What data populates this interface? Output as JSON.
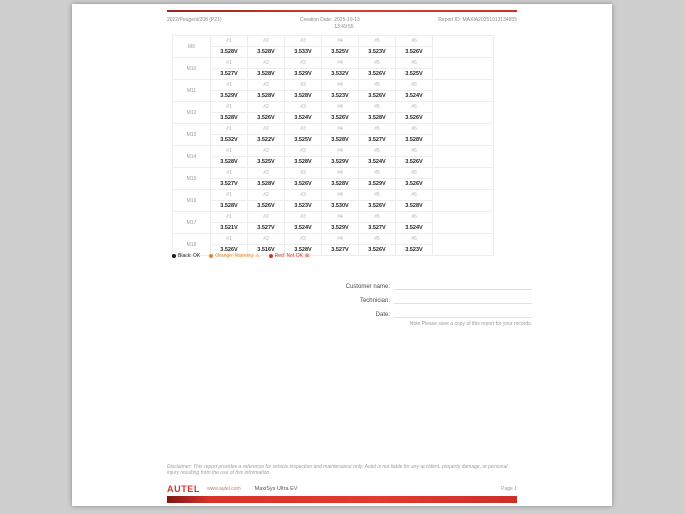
{
  "header": {
    "vehicle": "2022/Peugeot/208 (P21)",
    "creation_date_label": "Creation Date:",
    "creation_date": "2025-10-13",
    "creation_time": "13:49:55",
    "report_id_label": "Report ID:",
    "report_id": "MAXIA20251013134955"
  },
  "table": {
    "cell_headers": [
      "#1",
      "#2",
      "#3",
      "#4",
      "#5",
      "#6"
    ],
    "modules": [
      {
        "name": "M9",
        "values": [
          "3.528V",
          "3.528V",
          "3.533V",
          "3.525V",
          "3.523V",
          "3.526V"
        ]
      },
      {
        "name": "M10",
        "values": [
          "3.527V",
          "3.528V",
          "3.529V",
          "3.532V",
          "3.526V",
          "3.525V"
        ]
      },
      {
        "name": "M11",
        "values": [
          "3.529V",
          "3.528V",
          "3.528V",
          "3.523V",
          "3.526V",
          "3.524V"
        ]
      },
      {
        "name": "M12",
        "values": [
          "3.528V",
          "3.526V",
          "3.524V",
          "3.526V",
          "3.528V",
          "3.526V"
        ]
      },
      {
        "name": "M13",
        "values": [
          "3.532V",
          "3.522V",
          "3.525V",
          "3.528V",
          "3.527V",
          "3.528V"
        ]
      },
      {
        "name": "M14",
        "values": [
          "3.528V",
          "3.525V",
          "3.528V",
          "3.529V",
          "3.524V",
          "3.526V"
        ]
      },
      {
        "name": "M15",
        "values": [
          "3.527V",
          "3.528V",
          "3.526V",
          "3.528V",
          "3.529V",
          "3.526V"
        ]
      },
      {
        "name": "M16",
        "values": [
          "3.528V",
          "3.526V",
          "3.523V",
          "3.530V",
          "3.526V",
          "3.528V"
        ]
      },
      {
        "name": "M17",
        "values": [
          "3.521V",
          "3.527V",
          "3.524V",
          "3.529V",
          "3.527V",
          "3.524V"
        ]
      },
      {
        "name": "M18",
        "values": [
          "3.526V",
          "3.516V",
          "3.528V",
          "3.527V",
          "3.526V",
          "3.523V"
        ]
      }
    ]
  },
  "legend": {
    "items": [
      {
        "label": "Black: OK",
        "color": "#1c1c1c",
        "icon": ""
      },
      {
        "label": "Orange: Warning",
        "color": "#e8852c",
        "icon": "⚠"
      },
      {
        "label": "Red: Not OK",
        "color": "#d93025",
        "icon": "⊠"
      }
    ]
  },
  "form": {
    "customer_label": "Customer name:",
    "technician_label": "Technician:",
    "date_label": "Date:",
    "note": "Note:Please save a copy of this report for your records."
  },
  "disclaimer": "Disclaimer: This report provides a reference for vehicle inspection and maintenance only. Autel is not liable for any accident, property damage, or personal injury resulting from the use of this information.",
  "footer": {
    "brand": "AUTEL",
    "website": "www.autel.com",
    "product": "MaxiSys Ultra EV",
    "page": "Page 1"
  },
  "colors": {
    "accent_red": "#d6332b",
    "warning_orange": "#e8852c",
    "error_red": "#d93025"
  }
}
